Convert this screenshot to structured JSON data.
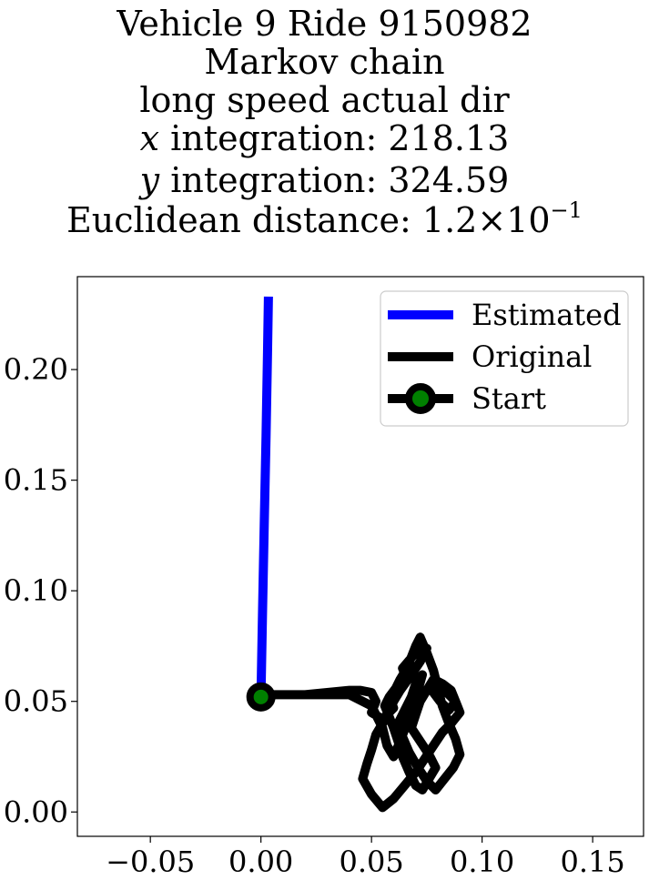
{
  "chart_data": {
    "type": "line",
    "title_lines": {
      "line1": "Vehicle 9 Ride 9150982",
      "line2": "Markov chain",
      "line3": "long speed actual dir",
      "line4_var": "x",
      "line4_text": " integration: 218.13",
      "line5_var": "y",
      "line5_text": " integration: 324.59",
      "line6_text": "Euclidean distance: 1.2×10",
      "line6_exp": "−1"
    },
    "xlim": [
      -0.083,
      0.173
    ],
    "ylim": [
      -0.011,
      0.242
    ],
    "x_ticks": [
      -0.05,
      0.0,
      0.05,
      0.1,
      0.15
    ],
    "x_tick_labels": [
      "−0.05",
      "0.00",
      "0.05",
      "0.10",
      "0.15"
    ],
    "y_ticks": [
      0.0,
      0.05,
      0.1,
      0.15,
      0.2
    ],
    "y_tick_labels": [
      "0.00",
      "0.05",
      "0.10",
      "0.15",
      "0.20"
    ],
    "grid": false,
    "legend_position": "top-right",
    "series": [
      {
        "name": "Estimated",
        "color": "#0000ff",
        "x": [
          0.0,
          0.0007,
          0.0015,
          0.0023,
          0.003,
          0.0034
        ],
        "y": [
          0.052,
          0.09,
          0.13,
          0.17,
          0.21,
          0.233
        ]
      },
      {
        "name": "Original",
        "color": "#000000",
        "x": [
          0.0,
          0.02,
          0.04,
          0.045,
          0.05,
          0.052,
          0.05,
          0.055,
          0.06,
          0.058,
          0.062,
          0.066,
          0.064,
          0.07,
          0.075,
          0.072,
          0.068,
          0.063,
          0.06,
          0.058,
          0.055,
          0.052,
          0.05,
          0.048,
          0.046,
          0.05,
          0.055,
          0.06,
          0.065,
          0.07,
          0.074,
          0.078,
          0.082,
          0.086,
          0.09,
          0.088,
          0.084,
          0.08,
          0.078,
          0.081,
          0.085,
          0.088,
          0.086,
          0.082,
          0.078,
          0.075,
          0.072,
          0.07,
          0.068,
          0.072,
          0.076,
          0.079,
          0.076,
          0.073,
          0.07,
          0.067,
          0.064,
          0.062,
          0.06,
          0.058,
          0.056,
          0.058,
          0.061,
          0.063,
          0.066,
          0.068,
          0.07,
          0.072,
          0.075,
          0.078,
          0.08,
          0.082,
          0.085,
          0.088,
          0.09,
          0.087,
          0.083,
          0.079,
          0.075,
          0.071,
          0.067,
          0.064,
          0.062,
          0.065,
          0.068,
          0.07,
          0.073,
          0.071,
          0.069,
          0.066,
          0.063,
          0.06,
          0.057,
          0.055,
          0.05,
          0.04,
          0.02,
          0.0
        ],
        "y": [
          0.053,
          0.053,
          0.055,
          0.055,
          0.054,
          0.05,
          0.045,
          0.042,
          0.047,
          0.052,
          0.056,
          0.06,
          0.065,
          0.072,
          0.074,
          0.068,
          0.062,
          0.055,
          0.05,
          0.045,
          0.04,
          0.035,
          0.028,
          0.022,
          0.015,
          0.008,
          0.002,
          0.006,
          0.012,
          0.018,
          0.024,
          0.03,
          0.036,
          0.04,
          0.045,
          0.05,
          0.054,
          0.058,
          0.054,
          0.05,
          0.046,
          0.05,
          0.055,
          0.058,
          0.06,
          0.055,
          0.05,
          0.044,
          0.038,
          0.032,
          0.026,
          0.02,
          0.015,
          0.01,
          0.012,
          0.018,
          0.025,
          0.032,
          0.038,
          0.043,
          0.048,
          0.052,
          0.056,
          0.06,
          0.065,
          0.07,
          0.075,
          0.079,
          0.072,
          0.064,
          0.056,
          0.048,
          0.04,
          0.033,
          0.026,
          0.02,
          0.015,
          0.01,
          0.014,
          0.02,
          0.027,
          0.034,
          0.04,
          0.046,
          0.052,
          0.058,
          0.062,
          0.055,
          0.048,
          0.04,
          0.032,
          0.025,
          0.03,
          0.038,
          0.048,
          0.053,
          0.053,
          0.053
        ]
      },
      {
        "name": "Start",
        "marker_fill": "#008000",
        "marker_edge": "#000000",
        "x": [
          0.0
        ],
        "y": [
          0.052
        ]
      }
    ],
    "legend": [
      "Estimated",
      "Original",
      "Start"
    ]
  }
}
